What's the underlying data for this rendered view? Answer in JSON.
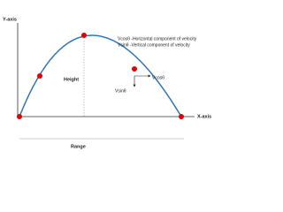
{
  "axes": {
    "y": "Y-axis",
    "x": "X-axis"
  },
  "labels": {
    "height": "Height",
    "range": "Range",
    "horizontal_component": "Vcosθ",
    "vertical_component": "Vsinθ"
  },
  "legend": [
    "Vcosθ -Horizontal component of velocity",
    "Vsinθ -Vertical component of velocity"
  ]
}
